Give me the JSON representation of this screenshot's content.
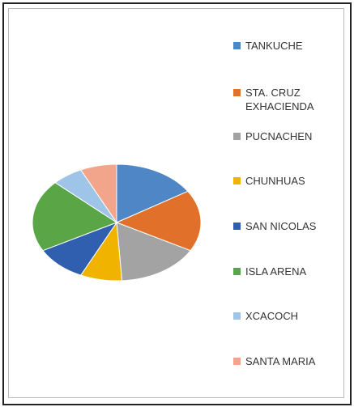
{
  "chart_data": {
    "type": "pie",
    "categories": [
      "TANKUCHE",
      "STA. CRUZ EXHACIENDA",
      "PUCNACHEN",
      "CHUNHUAS",
      "SAN NICOLAS",
      "ISLA ARENA",
      "XCACOCH",
      "SANTA MARIA"
    ],
    "values": [
      16,
      17,
      16,
      8,
      10,
      20,
      6,
      7
    ],
    "colors": [
      "#4f86c6",
      "#e0702a",
      "#a3a3a3",
      "#f0b400",
      "#2f5fae",
      "#5aa545",
      "#9ec4e8",
      "#f2a58a"
    ],
    "legend": "right"
  }
}
